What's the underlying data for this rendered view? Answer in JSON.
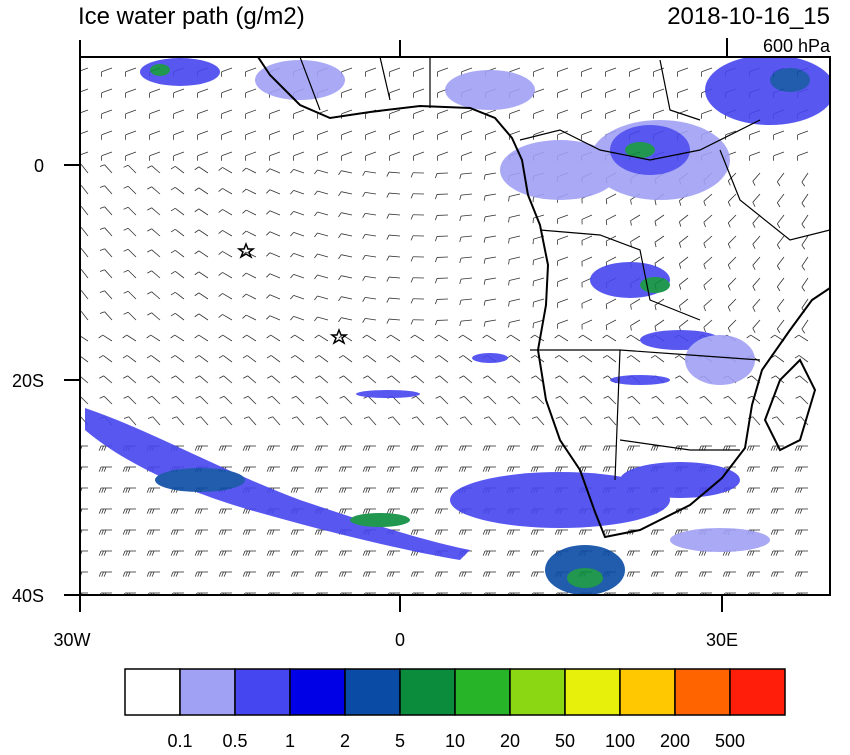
{
  "title": "Ice water path (g/m2)",
  "datetime": "2018-10-16_15",
  "level": "600 hPa",
  "lat_labels": [
    "0",
    "20S",
    "40S"
  ],
  "lon_labels": [
    "30W",
    "0",
    "30E"
  ],
  "colorbar": {
    "labels": [
      "0.1",
      "0.5",
      "1",
      "2",
      "5",
      "10",
      "20",
      "50",
      "100",
      "200",
      "500"
    ],
    "colors": [
      "#ffffff",
      "#a0a0f5",
      "#4646f0",
      "#0000e6",
      "#0a4ba5",
      "#0a8c3c",
      "#28b428",
      "#8cd714",
      "#e6f00a",
      "#ffc800",
      "#ff6400",
      "#ff1e0a"
    ]
  }
}
